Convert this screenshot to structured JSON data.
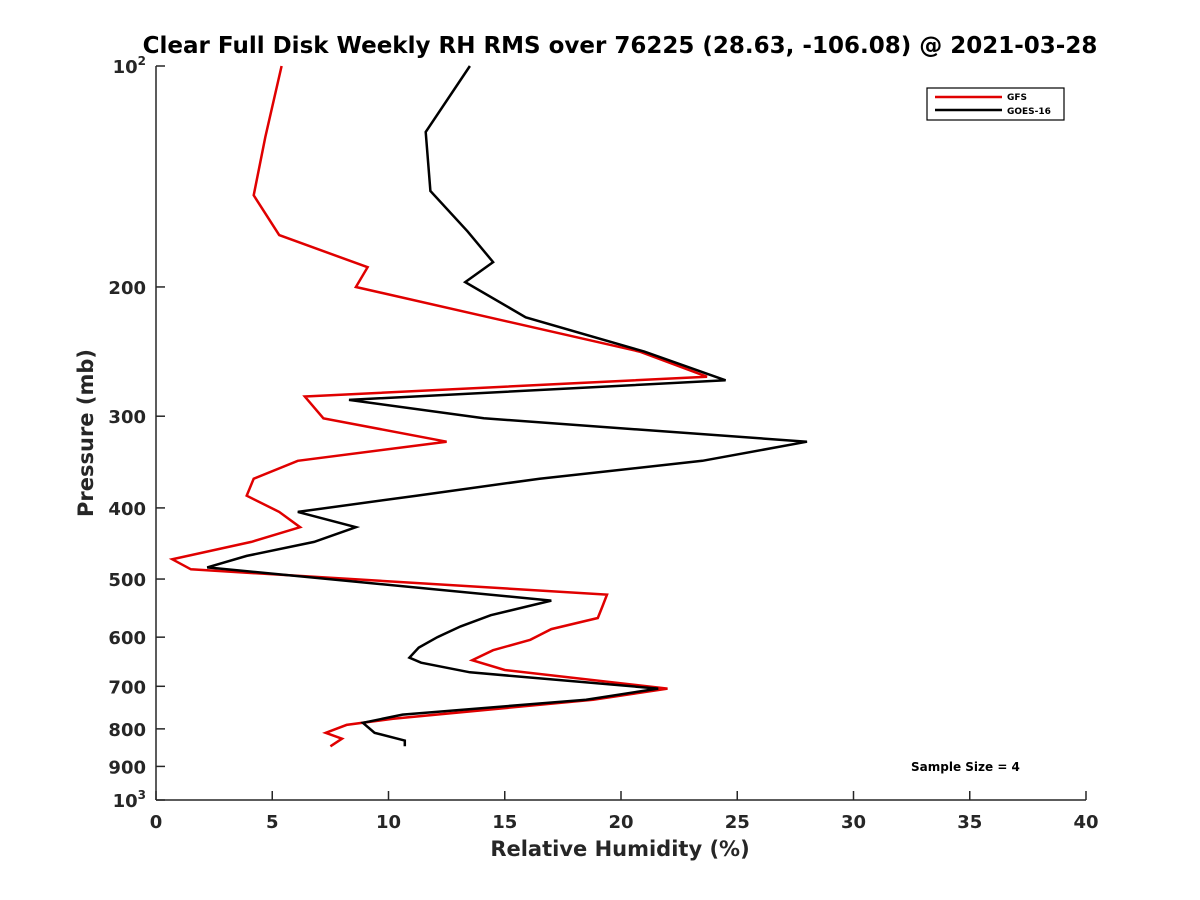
{
  "chart_data": {
    "type": "line",
    "title": "Clear Full Disk Weekly RH RMS over 76225 (28.63, -106.08) @ 2021-03-28",
    "xlabel": "Relative Humidity (%)",
    "ylabel": "Pressure (mb)",
    "xlim": [
      0,
      40
    ],
    "ylim": [
      1000,
      100
    ],
    "yscale": "log",
    "y_reversed": true,
    "grid": false,
    "legend_position": "top-right",
    "x_ticks": [
      "0",
      "5",
      "10",
      "15",
      "20",
      "25",
      "30",
      "35",
      "40"
    ],
    "y_ticks": [
      {
        "value": 100,
        "base": "10",
        "exp": "2"
      },
      {
        "value": 200,
        "label": "200"
      },
      {
        "value": 300,
        "label": "300"
      },
      {
        "value": 400,
        "label": "400"
      },
      {
        "value": 500,
        "label": "500"
      },
      {
        "value": 600,
        "label": "600"
      },
      {
        "value": 700,
        "label": "700"
      },
      {
        "value": 800,
        "label": "800"
      },
      {
        "value": 900,
        "label": "900"
      },
      {
        "value": 1000,
        "base": "10",
        "exp": "3"
      }
    ],
    "annotation": "Sample Size = 4",
    "series": [
      {
        "name": "GFS",
        "color": "#e00000",
        "points": [
          [
            5.4,
            100
          ],
          [
            4.7,
            125
          ],
          [
            4.2,
            150
          ],
          [
            5.3,
            170
          ],
          [
            9.1,
            188
          ],
          [
            8.6,
            200
          ],
          [
            20.8,
            245
          ],
          [
            23.7,
            265
          ],
          [
            6.4,
            282
          ],
          [
            7.2,
            302
          ],
          [
            12.5,
            325
          ],
          [
            6.1,
            345
          ],
          [
            4.2,
            365
          ],
          [
            3.9,
            385
          ],
          [
            5.3,
            405
          ],
          [
            6.2,
            425
          ],
          [
            4.1,
            445
          ],
          [
            0.7,
            470
          ],
          [
            1.5,
            485
          ],
          [
            19.4,
            525
          ],
          [
            19.2,
            545
          ],
          [
            19.0,
            565
          ],
          [
            17.0,
            585
          ],
          [
            16.1,
            605
          ],
          [
            14.5,
            625
          ],
          [
            13.6,
            645
          ],
          [
            15.0,
            665
          ],
          [
            22.0,
            705
          ],
          [
            18.8,
            730
          ],
          [
            10.2,
            775
          ],
          [
            8.2,
            790
          ],
          [
            7.3,
            810
          ],
          [
            8.0,
            825
          ],
          [
            7.5,
            845
          ]
        ]
      },
      {
        "name": "GOES-16",
        "color": "#000000",
        "points": [
          [
            13.5,
            100
          ],
          [
            11.6,
            123
          ],
          [
            11.8,
            148
          ],
          [
            13.4,
            168
          ],
          [
            14.5,
            185
          ],
          [
            13.3,
            197
          ],
          [
            15.9,
            220
          ],
          [
            21.0,
            245
          ],
          [
            24.5,
            268
          ],
          [
            8.3,
            285
          ],
          [
            14.1,
            302
          ],
          [
            28.0,
            325
          ],
          [
            23.5,
            345
          ],
          [
            16.5,
            365
          ],
          [
            11.2,
            385
          ],
          [
            6.1,
            405
          ],
          [
            8.6,
            425
          ],
          [
            6.8,
            445
          ],
          [
            3.9,
            465
          ],
          [
            2.2,
            482
          ],
          [
            17.0,
            535
          ],
          [
            14.4,
            560
          ],
          [
            13.1,
            580
          ],
          [
            12.1,
            600
          ],
          [
            11.3,
            620
          ],
          [
            10.9,
            640
          ],
          [
            11.4,
            650
          ],
          [
            13.5,
            670
          ],
          [
            21.6,
            705
          ],
          [
            18.5,
            730
          ],
          [
            10.6,
            765
          ],
          [
            8.9,
            785
          ],
          [
            9.4,
            810
          ],
          [
            10.7,
            830
          ],
          [
            10.7,
            845
          ]
        ]
      }
    ]
  }
}
